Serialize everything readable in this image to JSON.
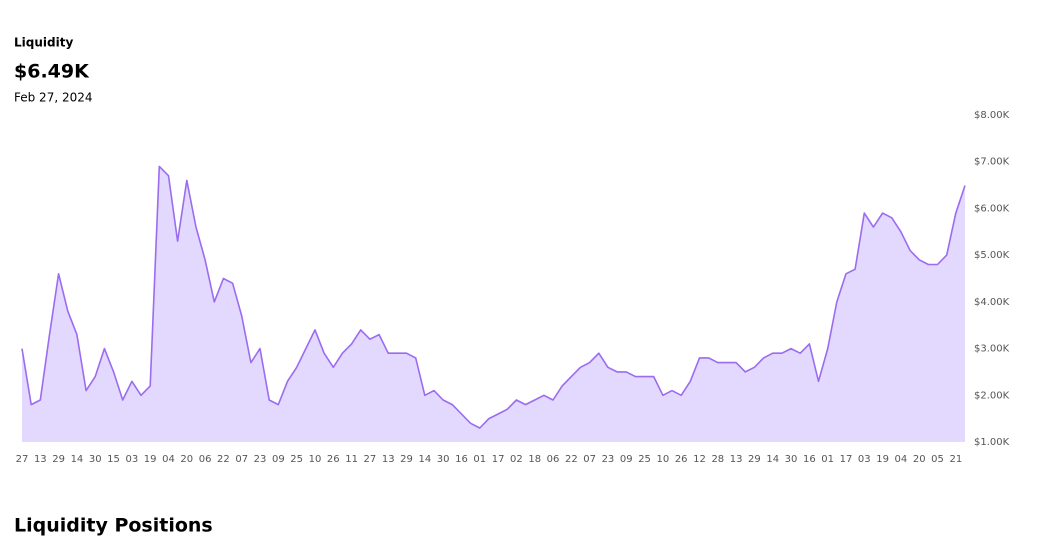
{
  "header": {
    "title": "Liquidity",
    "value": "$6.49K",
    "date": "Feb 27, 2024"
  },
  "chart_data": {
    "type": "area",
    "categories": [
      "27",
      null,
      "13",
      null,
      "29",
      null,
      "14",
      null,
      "30",
      null,
      "15",
      null,
      "03",
      null,
      "19",
      null,
      "04",
      null,
      "20",
      null,
      "06",
      null,
      "22",
      null,
      "07",
      null,
      "23",
      null,
      "09",
      null,
      "25",
      null,
      "10",
      null,
      "26",
      null,
      "11",
      null,
      "27",
      null,
      "13",
      null,
      "29",
      null,
      "14",
      null,
      "30",
      null,
      "16",
      null,
      "01",
      null,
      "17",
      null,
      "02",
      null,
      "18",
      null,
      "06",
      null,
      "22",
      null,
      "07",
      null,
      "23",
      null,
      "09",
      null,
      "25",
      null,
      "10",
      null,
      "26",
      null,
      "12",
      null,
      "28",
      null,
      "13",
      null,
      "29",
      null,
      "14",
      null,
      "30",
      null,
      "16",
      null,
      "01",
      null,
      "17",
      null,
      "03",
      null,
      "19",
      null,
      "04",
      null,
      "20",
      null,
      "05",
      null,
      "21",
      null
    ],
    "values": [
      3.0,
      1.8,
      1.9,
      3.3,
      4.6,
      3.8,
      3.3,
      2.1,
      2.4,
      3.0,
      2.5,
      1.9,
      2.3,
      2.0,
      2.2,
      6.9,
      6.7,
      5.3,
      6.6,
      5.6,
      4.9,
      4.0,
      4.5,
      4.4,
      3.7,
      2.7,
      3.0,
      1.9,
      1.8,
      2.3,
      2.6,
      3.0,
      3.4,
      2.9,
      2.6,
      2.9,
      3.1,
      3.4,
      3.2,
      3.3,
      2.9,
      2.9,
      2.9,
      2.8,
      2.0,
      2.1,
      1.9,
      1.8,
      1.6,
      1.4,
      1.3,
      1.5,
      1.6,
      1.7,
      1.9,
      1.8,
      1.9,
      2.0,
      1.9,
      2.2,
      2.4,
      2.6,
      2.7,
      2.9,
      2.6,
      2.5,
      2.5,
      2.4,
      2.4,
      2.4,
      2.0,
      2.1,
      2.0,
      2.3,
      2.8,
      2.8,
      2.7,
      2.7,
      2.7,
      2.5,
      2.6,
      2.8,
      2.9,
      2.9,
      3.0,
      2.9,
      3.1,
      2.3,
      3.0,
      4.0,
      4.6,
      4.7,
      5.9,
      5.6,
      5.9,
      5.8,
      5.5,
      5.1,
      4.9,
      4.8,
      4.8,
      5.0,
      5.9,
      6.49
    ],
    "color": "#9b6cf0",
    "fill": "#e3d8fd",
    "ylim": [
      1,
      8
    ],
    "yticks": [
      {
        "value": 1,
        "label": "$1.00K"
      },
      {
        "value": 2,
        "label": "$2.00K"
      },
      {
        "value": 3,
        "label": "$3.00K"
      },
      {
        "value": 4,
        "label": "$4.00K"
      },
      {
        "value": 5,
        "label": "$5.00K"
      },
      {
        "value": 6,
        "label": "$6.00K"
      },
      {
        "value": 7,
        "label": "$7.00K"
      },
      {
        "value": 8,
        "label": "$8.00K"
      }
    ],
    "grid": false
  },
  "section_title": "Liquidity Positions"
}
